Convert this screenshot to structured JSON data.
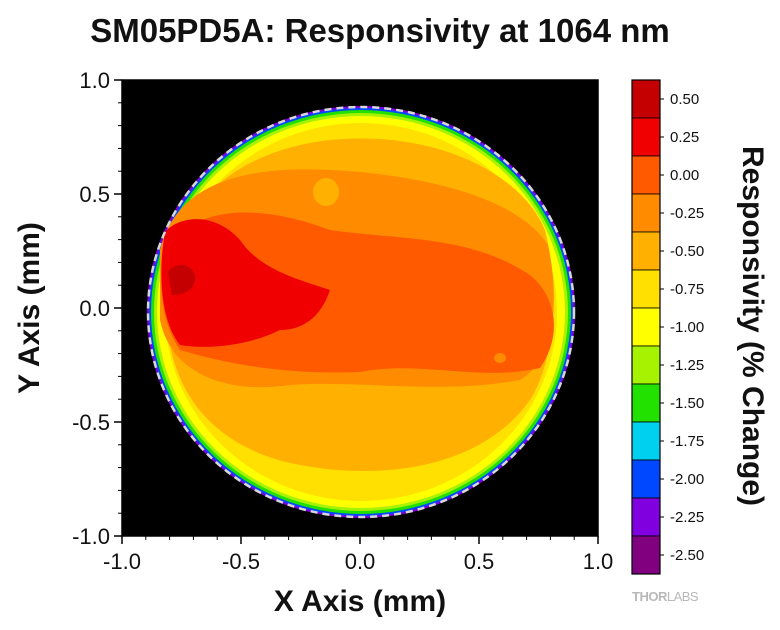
{
  "chart_data": {
    "type": "heatmap",
    "title": "SM05PD5A: Responsivity at 1064 nm",
    "xlabel": "X Axis (mm)",
    "ylabel": "Y Axis (mm)",
    "colorbar_label": "Responsivity (% Change)",
    "xlim": [
      -1.0,
      1.0
    ],
    "ylim": [
      -1.0,
      1.0
    ],
    "x_ticks": [
      "-1.0",
      "-0.5",
      "0.0",
      "0.5",
      "1.0"
    ],
    "y_ticks": [
      "1.0",
      "0.5",
      "0.0",
      "-0.5",
      "-1.0"
    ],
    "x_tick_values": [
      -1.0,
      -0.5,
      0.0,
      0.5,
      1.0
    ],
    "y_tick_values": [
      1.0,
      0.5,
      0.0,
      -0.5,
      -1.0
    ],
    "background_color": "#000000",
    "colorbar": {
      "levels": [
        "0.50",
        "0.25",
        "0.00",
        "-0.25",
        "-0.50",
        "-0.75",
        "-1.00",
        "-1.25",
        "-1.50",
        "-1.75",
        "-2.00",
        "-2.25",
        "-2.50"
      ],
      "colors": [
        "#c40000",
        "#f00000",
        "#ff5a00",
        "#ff8c00",
        "#ffb000",
        "#ffe000",
        "#ffff00",
        "#a6f200",
        "#22e000",
        "#00d0f0",
        "#0048ff",
        "#8000e0",
        "#800080"
      ]
    },
    "detector_edge_radius_mm": 0.9,
    "detector_edge_style": "dashed white circle",
    "response_map": {
      "description_levels": "percent change in responsivity",
      "center_value": -0.1,
      "hot_spot": {
        "x": -0.72,
        "y": 0.1,
        "value": 0.3
      },
      "edge_value": -0.85,
      "outer_rim_value": -2.2
    }
  },
  "brand_logo": {
    "bold": "THOR",
    "light": "LABS"
  }
}
